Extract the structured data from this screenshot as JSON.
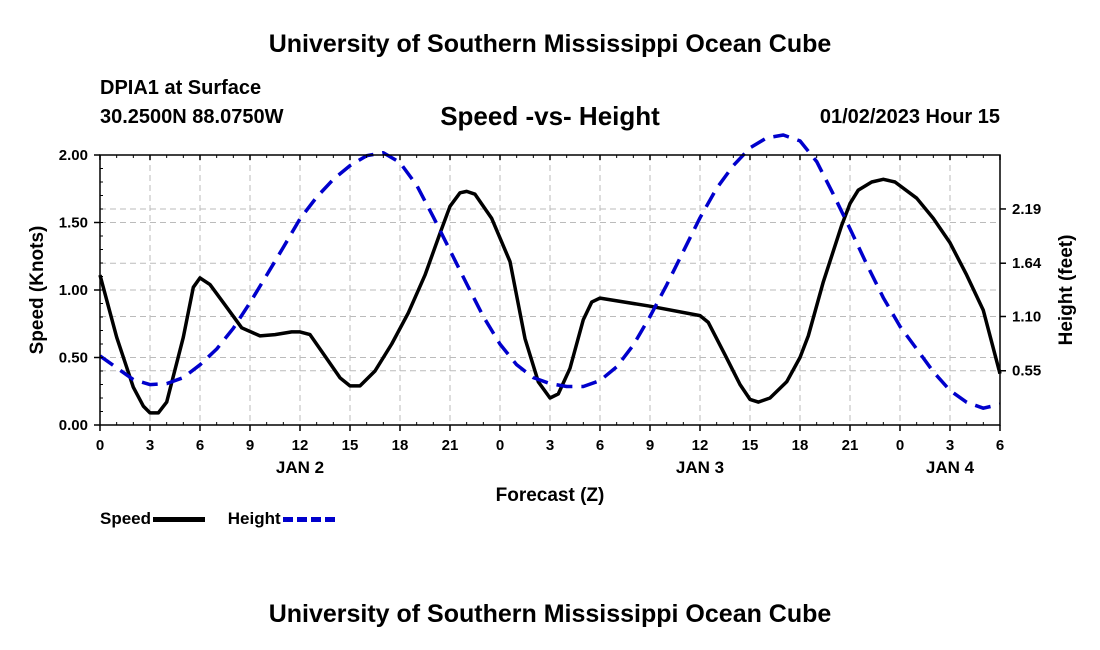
{
  "header": {
    "title_top": "University of Southern Mississippi Ocean Cube",
    "station": "DPIA1 at Surface",
    "coords": "30.2500N  88.0750W",
    "chart_title": "Speed -vs- Height",
    "datetime": "01/02/2023 Hour 15"
  },
  "footer": {
    "title_bottom": "University of Southern Mississippi Ocean Cube"
  },
  "legend": {
    "speed_label": "Speed",
    "height_label": "Height"
  },
  "colors": {
    "speed": "#000000",
    "height": "#0000cc",
    "grid": "#bbbbbb"
  },
  "chart_data": {
    "type": "line",
    "title": "Speed -vs- Height",
    "xlabel": "Forecast (Z)",
    "ylabel": "Speed (Knots)",
    "ylabel_right": "Height (feet)",
    "xlim": [
      0,
      54
    ],
    "ylim": [
      0,
      2.0
    ],
    "ylim_right": [
      0,
      2.737
    ],
    "grid": true,
    "x_ticks": [
      0,
      3,
      6,
      9,
      12,
      15,
      18,
      21,
      24,
      27,
      30,
      33,
      36,
      39,
      42,
      45,
      48,
      51,
      54
    ],
    "x_tick_labels": [
      "0",
      "3",
      "6",
      "9",
      "12",
      "15",
      "18",
      "21",
      "0",
      "3",
      "6",
      "9",
      "12",
      "15",
      "18",
      "21",
      "0",
      "3",
      "6"
    ],
    "date_labels": [
      {
        "x": 12,
        "label": "JAN 2"
      },
      {
        "x": 36,
        "label": "JAN 3"
      },
      {
        "x": 51,
        "label": "JAN 4"
      }
    ],
    "y_ticks": [
      0,
      0.5,
      1.0,
      1.5,
      2.0
    ],
    "y_tick_labels": [
      "0.00",
      "0.50",
      "1.00",
      "1.50",
      "2.00"
    ],
    "y_right_ticks": [
      0.55,
      1.1,
      1.64,
      2.19
    ],
    "y_right_tick_labels": [
      "0.55",
      "1.10",
      "1.64",
      "2.19"
    ],
    "series": [
      {
        "name": "Speed",
        "axis": "left",
        "style": "solid",
        "x": [
          0,
          1,
          2,
          2.6,
          3,
          3.5,
          4,
          5,
          5.6,
          6,
          6.6,
          7.5,
          8.5,
          9.6,
          10.5,
          11.5,
          12,
          12.6,
          13.5,
          14.4,
          15,
          15.6,
          16.5,
          17.5,
          18.5,
          19.5,
          20.4,
          21,
          21.6,
          22,
          22.5,
          23.5,
          24.6,
          25.5,
          26.3,
          27,
          27.5,
          28.2,
          29,
          29.5,
          30,
          33,
          36,
          36.5,
          37.5,
          38.4,
          39,
          39.5,
          40.2,
          41.2,
          42,
          42.5,
          43.4,
          44.5,
          45,
          45.5,
          46.3,
          47,
          47.7,
          49,
          50,
          51,
          52,
          53,
          54
        ],
        "values": [
          1.11,
          0.65,
          0.28,
          0.14,
          0.09,
          0.09,
          0.17,
          0.65,
          1.02,
          1.09,
          1.04,
          0.89,
          0.72,
          0.66,
          0.67,
          0.69,
          0.69,
          0.67,
          0.51,
          0.35,
          0.29,
          0.29,
          0.4,
          0.6,
          0.83,
          1.11,
          1.42,
          1.62,
          1.72,
          1.73,
          1.71,
          1.53,
          1.21,
          0.64,
          0.32,
          0.2,
          0.23,
          0.42,
          0.78,
          0.91,
          0.94,
          0.88,
          0.81,
          0.76,
          0.52,
          0.3,
          0.19,
          0.17,
          0.2,
          0.32,
          0.5,
          0.66,
          1.06,
          1.48,
          1.64,
          1.74,
          1.8,
          1.82,
          1.8,
          1.68,
          1.53,
          1.35,
          1.11,
          0.85,
          0.38
        ]
      },
      {
        "name": "Height",
        "axis": "right",
        "style": "dashed",
        "x": [
          0,
          1,
          2,
          3,
          4,
          5,
          6,
          7,
          8,
          9,
          10,
          11,
          12,
          13,
          14,
          15,
          16,
          17,
          18,
          19,
          20,
          21,
          22,
          23,
          24,
          25,
          26,
          27,
          28,
          29,
          30,
          31,
          32,
          33,
          34,
          35,
          36,
          37,
          38,
          39,
          40,
          41,
          42,
          43,
          44,
          45,
          46,
          47,
          48,
          49,
          50,
          51,
          52,
          53,
          54
        ],
        "values": [
          0.7,
          0.58,
          0.46,
          0.41,
          0.42,
          0.48,
          0.61,
          0.77,
          0.98,
          1.24,
          1.52,
          1.8,
          2.09,
          2.31,
          2.49,
          2.63,
          2.73,
          2.76,
          2.66,
          2.43,
          2.11,
          1.77,
          1.43,
          1.1,
          0.82,
          0.61,
          0.48,
          0.42,
          0.39,
          0.39,
          0.45,
          0.59,
          0.81,
          1.1,
          1.42,
          1.76,
          2.1,
          2.4,
          2.63,
          2.81,
          2.91,
          2.94,
          2.88,
          2.67,
          2.34,
          1.99,
          1.63,
          1.29,
          1.0,
          0.77,
          0.54,
          0.35,
          0.23,
          0.17,
          0.21
        ]
      }
    ]
  }
}
